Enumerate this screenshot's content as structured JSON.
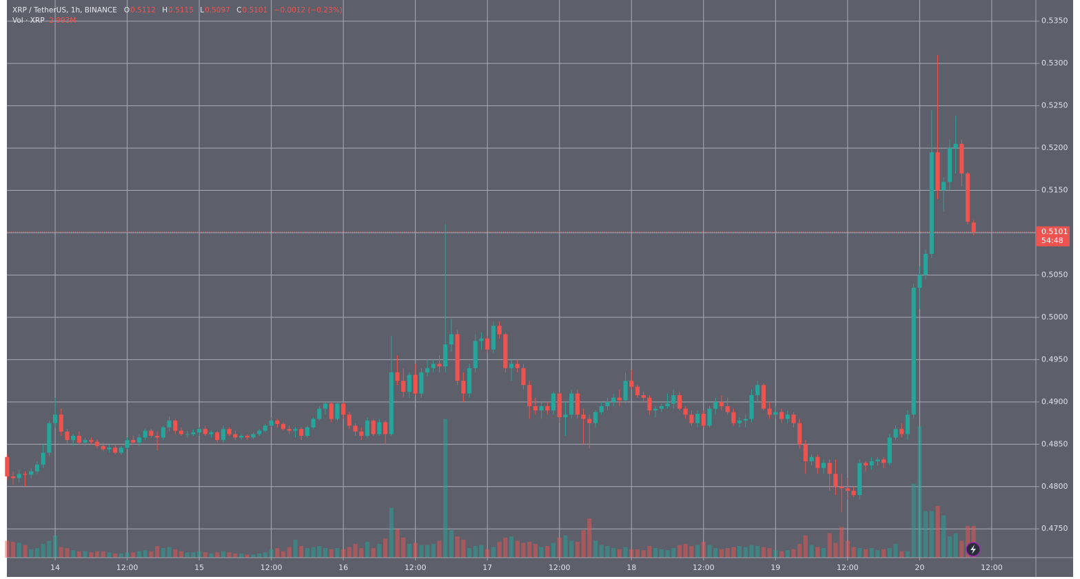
{
  "chart_data": {
    "type": "candlestick",
    "legend": {
      "symbol": "XRP / TetherUS, 1h, BINANCE",
      "o_label": "O",
      "o": 0.5112,
      "h_label": "H",
      "h": 0.5115,
      "l_label": "L",
      "l": 0.5097,
      "c_label": "C",
      "c": 0.5101,
      "change": "−0.0012 (−0.23%)",
      "volume_title": "Vol · XRP",
      "volume_last": "2.993M"
    },
    "last_price": 0.5101,
    "countdown": "54:48",
    "up_color": "#26a69a",
    "down_color": "#ef5350",
    "grid": true,
    "xlim": [
      -0.04,
      171.36
    ],
    "ylim": [
      0.4716,
      0.5375
    ],
    "volume_ylim": [
      0,
      52.7
    ],
    "xticks": [
      {
        "value": 8,
        "label": "14"
      },
      {
        "value": 20,
        "label": "12:00"
      },
      {
        "value": 32,
        "label": "15"
      },
      {
        "value": 44,
        "label": "12:00"
      },
      {
        "value": 56,
        "label": "16"
      },
      {
        "value": 68,
        "label": "12:00"
      },
      {
        "value": 80,
        "label": "17"
      },
      {
        "value": 92,
        "label": "12:00"
      },
      {
        "value": 104,
        "label": "18"
      },
      {
        "value": 116,
        "label": "12:00"
      },
      {
        "value": 128,
        "label": "19"
      },
      {
        "value": 140,
        "label": "12:00"
      },
      {
        "value": 152,
        "label": "20"
      },
      {
        "value": 164,
        "label": "12:00"
      }
    ],
    "yticks": [
      {
        "value": 0.475,
        "label": "0.4750"
      },
      {
        "value": 0.48,
        "label": "0.4800"
      },
      {
        "value": 0.485,
        "label": "0.4850"
      },
      {
        "value": 0.49,
        "label": "0.4900"
      },
      {
        "value": 0.495,
        "label": "0.4950"
      },
      {
        "value": 0.5,
        "label": "0.5000"
      },
      {
        "value": 0.505,
        "label": "0.5050"
      },
      {
        "value": 0.51,
        "label": "0.5100"
      },
      {
        "value": 0.515,
        "label": "0.5150"
      },
      {
        "value": 0.52,
        "label": "0.5200"
      },
      {
        "value": 0.525,
        "label": "0.5250"
      },
      {
        "value": 0.53,
        "label": "0.5300"
      },
      {
        "value": 0.535,
        "label": "0.5350"
      }
    ],
    "open": [
      0.4835,
      0.4812,
      0.481,
      0.4815,
      0.4814,
      0.4818,
      0.4826,
      0.484,
      0.4875,
      0.4885,
      0.4865,
      0.4855,
      0.486,
      0.4852,
      0.4855,
      0.4853,
      0.4848,
      0.4844,
      0.4846,
      0.484,
      0.4846,
      0.4855,
      0.4852,
      0.4858,
      0.4866,
      0.486,
      0.4858,
      0.487,
      0.4878,
      0.4866,
      0.4862,
      0.4862,
      0.4864,
      0.4868,
      0.4862,
      0.4864,
      0.4855,
      0.4868,
      0.4862,
      0.4858,
      0.486,
      0.4858,
      0.4862,
      0.4866,
      0.4872,
      0.4878,
      0.4874,
      0.4868,
      0.4866,
      0.4868,
      0.486,
      0.487,
      0.488,
      0.4892,
      0.4898,
      0.488,
      0.4898,
      0.4885,
      0.4872,
      0.4865,
      0.486,
      0.4878,
      0.4862,
      0.4876,
      0.4862,
      0.4935,
      0.4925,
      0.4912,
      0.4932,
      0.491,
      0.4935,
      0.494,
      0.4945,
      0.4942,
      0.4968,
      0.498,
      0.4925,
      0.491,
      0.494,
      0.4972,
      0.4975,
      0.4962,
      0.499,
      0.498,
      0.494,
      0.4945,
      0.494,
      0.492,
      0.4895,
      0.489,
      0.4895,
      0.489,
      0.491,
      0.4882,
      0.4885,
      0.491,
      0.4885,
      0.488,
      0.4875,
      0.4888,
      0.4895,
      0.49,
      0.4905,
      0.4902,
      0.4925,
      0.4918,
      0.4908,
      0.4905,
      0.489,
      0.4892,
      0.4895,
      0.4898,
      0.4908,
      0.4892,
      0.4885,
      0.4875,
      0.4886,
      0.4872,
      0.4892,
      0.49,
      0.4895,
      0.4888,
      0.4875,
      0.4878,
      0.488,
      0.4908,
      0.492,
      0.4892,
      0.4885,
      0.4888,
      0.488,
      0.4885,
      0.4875,
      0.485,
      0.483,
      0.4835,
      0.4822,
      0.4828,
      0.4815,
      0.48,
      0.4798,
      0.4795,
      0.479,
      0.4828,
      0.4825,
      0.483,
      0.4832,
      0.4828,
      0.4858,
      0.4868,
      0.4862,
      0.4885,
      0.5035,
      0.505,
      0.5075,
      0.5195,
      0.515,
      0.516,
      0.52,
      0.5205,
      0.517,
      0.5112
    ],
    "high": [
      0.4838,
      0.4818,
      0.482,
      0.4818,
      0.4822,
      0.483,
      0.485,
      0.4878,
      0.4905,
      0.4892,
      0.4868,
      0.4862,
      0.4865,
      0.4858,
      0.4858,
      0.4856,
      0.4852,
      0.485,
      0.485,
      0.4848,
      0.4858,
      0.486,
      0.4862,
      0.4868,
      0.4868,
      0.4865,
      0.4872,
      0.4883,
      0.488,
      0.487,
      0.4866,
      0.4868,
      0.487,
      0.4872,
      0.4866,
      0.4866,
      0.4872,
      0.487,
      0.4866,
      0.4862,
      0.4862,
      0.4864,
      0.4868,
      0.4874,
      0.4882,
      0.488,
      0.4876,
      0.4872,
      0.487,
      0.487,
      0.4872,
      0.4882,
      0.4895,
      0.49,
      0.49,
      0.49,
      0.49,
      0.4888,
      0.4875,
      0.487,
      0.4882,
      0.488,
      0.488,
      0.4878,
      0.4978,
      0.4955,
      0.494,
      0.4935,
      0.4945,
      0.494,
      0.495,
      0.495,
      0.4955,
      0.511,
      0.4998,
      0.4985,
      0.4935,
      0.4945,
      0.498,
      0.4982,
      0.4978,
      0.4995,
      0.4995,
      0.4982,
      0.495,
      0.495,
      0.4945,
      0.4925,
      0.4905,
      0.49,
      0.49,
      0.4912,
      0.4912,
      0.49,
      0.4915,
      0.4915,
      0.4892,
      0.4885,
      0.489,
      0.49,
      0.4905,
      0.491,
      0.4915,
      0.4935,
      0.4938,
      0.492,
      0.4912,
      0.4908,
      0.4895,
      0.4898,
      0.491,
      0.4915,
      0.4912,
      0.4895,
      0.489,
      0.489,
      0.489,
      0.4895,
      0.4905,
      0.4908,
      0.4905,
      0.4892,
      0.4882,
      0.4885,
      0.4915,
      0.4925,
      0.4922,
      0.49,
      0.4895,
      0.4892,
      0.489,
      0.4888,
      0.488,
      0.4855,
      0.4838,
      0.4838,
      0.4832,
      0.4832,
      0.4832,
      0.4815,
      0.481,
      0.48,
      0.4832,
      0.483,
      0.4835,
      0.4835,
      0.4835,
      0.4862,
      0.4872,
      0.4875,
      0.489,
      0.504,
      0.506,
      0.508,
      0.5245,
      0.531,
      0.5165,
      0.521,
      0.5238,
      0.521,
      0.5172,
      0.5115
    ],
    "low": [
      0.4808,
      0.4802,
      0.4805,
      0.48,
      0.481,
      0.4815,
      0.4822,
      0.4836,
      0.487,
      0.486,
      0.485,
      0.4848,
      0.485,
      0.4848,
      0.485,
      0.4845,
      0.4842,
      0.484,
      0.4838,
      0.4838,
      0.4844,
      0.485,
      0.4848,
      0.4855,
      0.4858,
      0.4843,
      0.4855,
      0.4865,
      0.4862,
      0.486,
      0.4858,
      0.486,
      0.486,
      0.486,
      0.4858,
      0.4852,
      0.4852,
      0.486,
      0.4855,
      0.4855,
      0.4855,
      0.4856,
      0.486,
      0.4864,
      0.487,
      0.487,
      0.4866,
      0.4862,
      0.4858,
      0.4855,
      0.4858,
      0.4868,
      0.4878,
      0.4885,
      0.4876,
      0.4878,
      0.488,
      0.4868,
      0.486,
      0.4855,
      0.4858,
      0.486,
      0.486,
      0.485,
      0.486,
      0.492,
      0.4905,
      0.4905,
      0.4908,
      0.4905,
      0.493,
      0.4935,
      0.4935,
      0.4935,
      0.496,
      0.492,
      0.49,
      0.4905,
      0.4935,
      0.4962,
      0.4958,
      0.4958,
      0.4975,
      0.4935,
      0.4925,
      0.4935,
      0.4915,
      0.488,
      0.4885,
      0.488,
      0.4885,
      0.4885,
      0.4875,
      0.486,
      0.488,
      0.488,
      0.485,
      0.4845,
      0.487,
      0.4885,
      0.489,
      0.4895,
      0.4895,
      0.4898,
      0.4915,
      0.4905,
      0.49,
      0.4885,
      0.4882,
      0.4888,
      0.4892,
      0.4892,
      0.489,
      0.488,
      0.4872,
      0.487,
      0.487,
      0.487,
      0.4885,
      0.489,
      0.4885,
      0.4872,
      0.487,
      0.487,
      0.4876,
      0.49,
      0.489,
      0.488,
      0.488,
      0.4875,
      0.4875,
      0.487,
      0.4845,
      0.4815,
      0.4825,
      0.4815,
      0.4815,
      0.4795,
      0.479,
      0.477,
      0.4785,
      0.4788,
      0.4785,
      0.4818,
      0.482,
      0.4825,
      0.4822,
      0.4825,
      0.4855,
      0.4858,
      0.4855,
      0.488,
      0.501,
      0.5045,
      0.507,
      0.514,
      0.5125,
      0.515,
      0.517,
      0.5155,
      0.511,
      0.5097
    ],
    "close": [
      0.4812,
      0.481,
      0.4815,
      0.4814,
      0.4818,
      0.4826,
      0.484,
      0.4875,
      0.4885,
      0.4865,
      0.4855,
      0.486,
      0.4852,
      0.4855,
      0.4853,
      0.4848,
      0.4844,
      0.4846,
      0.484,
      0.4846,
      0.4855,
      0.4852,
      0.4858,
      0.4866,
      0.486,
      0.4858,
      0.487,
      0.4878,
      0.4866,
      0.4862,
      0.4862,
      0.4864,
      0.4868,
      0.4862,
      0.4864,
      0.4855,
      0.4868,
      0.4862,
      0.4858,
      0.486,
      0.4858,
      0.4862,
      0.4866,
      0.4872,
      0.4878,
      0.4874,
      0.4868,
      0.4866,
      0.4868,
      0.486,
      0.487,
      0.488,
      0.4892,
      0.4898,
      0.488,
      0.4898,
      0.4885,
      0.4872,
      0.4865,
      0.486,
      0.4878,
      0.4862,
      0.4876,
      0.4862,
      0.4935,
      0.4925,
      0.4912,
      0.4932,
      0.491,
      0.4935,
      0.494,
      0.4945,
      0.4942,
      0.4968,
      0.498,
      0.4925,
      0.491,
      0.494,
      0.4972,
      0.4975,
      0.4962,
      0.499,
      0.498,
      0.494,
      0.4945,
      0.494,
      0.492,
      0.4895,
      0.489,
      0.4895,
      0.489,
      0.491,
      0.4882,
      0.4885,
      0.491,
      0.4885,
      0.488,
      0.4875,
      0.4888,
      0.4895,
      0.49,
      0.4905,
      0.4902,
      0.4925,
      0.4918,
      0.4908,
      0.4905,
      0.489,
      0.4892,
      0.4895,
      0.4898,
      0.4908,
      0.4892,
      0.4885,
      0.4875,
      0.4886,
      0.4872,
      0.4892,
      0.49,
      0.4895,
      0.4888,
      0.4875,
      0.4878,
      0.488,
      0.4908,
      0.492,
      0.4892,
      0.4885,
      0.4888,
      0.488,
      0.4885,
      0.4875,
      0.485,
      0.483,
      0.4835,
      0.4822,
      0.4828,
      0.4815,
      0.48,
      0.4798,
      0.4795,
      0.479,
      0.4828,
      0.4825,
      0.483,
      0.4832,
      0.4828,
      0.4858,
      0.4868,
      0.4862,
      0.4885,
      0.5035,
      0.505,
      0.5075,
      0.5195,
      0.515,
      0.516,
      0.52,
      0.5205,
      0.517,
      0.5113,
      0.5101
    ],
    "volume": [
      1.6,
      1.5,
      1.4,
      1.2,
      0.8,
      0.9,
      1.3,
      1.6,
      2.1,
      1.0,
      0.9,
      0.7,
      0.6,
      0.6,
      0.5,
      0.6,
      0.6,
      0.5,
      0.4,
      0.4,
      0.5,
      0.5,
      0.6,
      0.7,
      0.6,
      1.1,
      0.9,
      1.0,
      0.8,
      0.6,
      0.5,
      0.5,
      0.6,
      0.5,
      0.4,
      0.5,
      0.6,
      0.5,
      0.4,
      0.4,
      0.3,
      0.3,
      0.4,
      0.5,
      0.8,
      0.9,
      0.6,
      1.0,
      1.7,
      1.1,
      0.9,
      1.0,
      1.1,
      0.9,
      0.8,
      0.9,
      0.8,
      1.0,
      1.3,
      0.9,
      1.5,
      0.9,
      1.3,
      1.8,
      4.7,
      2.7,
      1.9,
      1.3,
      1.4,
      1.2,
      1.2,
      1.3,
      1.6,
      13.1,
      2.6,
      2.0,
      1.7,
      0.9,
      1.1,
      1.2,
      0.8,
      1.0,
      1.5,
      1.9,
      2.0,
      1.6,
      1.4,
      1.5,
      1.3,
      1.0,
      1.1,
      1.4,
      1.9,
      2.1,
      1.6,
      1.5,
      2.6,
      3.7,
      1.6,
      1.2,
      1.1,
      0.9,
      0.8,
      1.0,
      0.8,
      0.8,
      0.7,
      1.1,
      0.9,
      0.8,
      0.7,
      0.9,
      1.2,
      1.3,
      1.1,
      1.2,
      1.5,
      1.2,
      0.9,
      0.8,
      0.9,
      1.0,
      1.1,
      1.0,
      1.2,
      1.1,
      1.0,
      0.9,
      0.7,
      0.6,
      0.7,
      0.8,
      1.3,
      2.1,
      1.2,
      1.0,
      0.9,
      2.3,
      1.4,
      2.9,
      1.6,
      1.0,
      0.9,
      0.8,
      0.9,
      0.7,
      0.8,
      0.9,
      1.3,
      0.6,
      0.6,
      7.0,
      12.4,
      4.4,
      4.4,
      4.9,
      4.0,
      2.0,
      2.3,
      1.6,
      3.0,
      2.993
    ]
  }
}
